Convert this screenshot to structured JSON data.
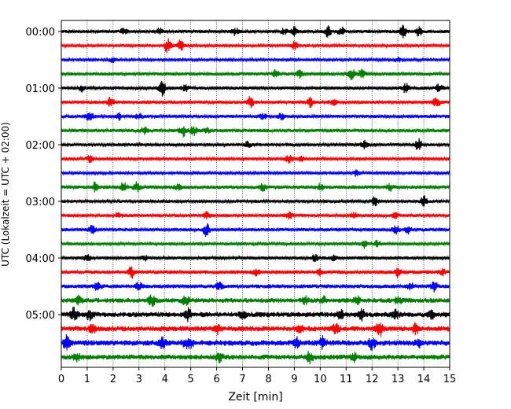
{
  "chart_data": {
    "type": "line",
    "title": "",
    "xlabel": "Zeit  [min]",
    "ylabel": "UTC (Lokalzeit = UTC + 02:00)",
    "xlim": [
      0,
      15
    ],
    "x_ticks": [
      "0",
      "1",
      "2",
      "3",
      "4",
      "5",
      "6",
      "7",
      "8",
      "9",
      "10",
      "11",
      "12",
      "13",
      "14",
      "15"
    ],
    "y_tick_labels": [
      "00:00",
      "01:00",
      "02:00",
      "03:00",
      "04:00",
      "05:00"
    ],
    "trace_interval_minutes": 15,
    "trace_count": 24,
    "start_time": "00:00",
    "grid": "vertical dotted lines at each minute",
    "colors": [
      "#000000",
      "#ff0000",
      "#0000ff",
      "#008000"
    ],
    "series": [
      {
        "start": "00:00",
        "color": "#000000",
        "activity": 0.5,
        "bursts": [
          [
            2.4,
            0.8
          ],
          [
            3.8,
            0.7
          ],
          [
            6.7,
            1.0
          ],
          [
            8.6,
            0.7
          ],
          [
            9.0,
            1.2
          ],
          [
            10.3,
            1.5
          ],
          [
            10.8,
            1.2
          ],
          [
            13.2,
            1.6
          ],
          [
            13.8,
            1.2
          ]
        ]
      },
      {
        "start": "00:15",
        "color": "#ff0000",
        "activity": 0.4,
        "bursts": [
          [
            4.1,
            2.0
          ],
          [
            4.6,
            1.5
          ],
          [
            9.0,
            1.0
          ]
        ]
      },
      {
        "start": "00:30",
        "color": "#0000ff",
        "activity": 0.3,
        "bursts": [
          [
            2.0,
            0.8
          ],
          [
            13.0,
            0.7
          ]
        ]
      },
      {
        "start": "00:45",
        "color": "#008000",
        "activity": 0.5,
        "bursts": [
          [
            8.3,
            1.2
          ],
          [
            9.2,
            1.0
          ],
          [
            11.2,
            1.5
          ],
          [
            11.6,
            1.2
          ]
        ]
      },
      {
        "start": "01:00",
        "color": "#000000",
        "activity": 0.5,
        "bursts": [
          [
            0.8,
            0.8
          ],
          [
            3.9,
            2.0
          ],
          [
            4.8,
            0.8
          ],
          [
            13.3,
            1.2
          ],
          [
            14.6,
            1.0
          ]
        ]
      },
      {
        "start": "01:15",
        "color": "#ff0000",
        "activity": 0.5,
        "bursts": [
          [
            1.9,
            1.2
          ],
          [
            7.3,
            1.5
          ],
          [
            9.6,
            1.3
          ],
          [
            10.5,
            0.8
          ],
          [
            14.5,
            1.4
          ]
        ]
      },
      {
        "start": "01:30",
        "color": "#0000ff",
        "activity": 0.5,
        "bursts": [
          [
            1.1,
            1.5
          ],
          [
            2.2,
            1.0
          ],
          [
            3.0,
            0.8
          ],
          [
            7.8,
            0.7
          ],
          [
            8.5,
            0.8
          ]
        ]
      },
      {
        "start": "01:45",
        "color": "#008000",
        "activity": 0.6,
        "bursts": [
          [
            3.2,
            1.0
          ],
          [
            4.7,
            1.5
          ],
          [
            5.1,
            1.2
          ],
          [
            5.6,
            0.8
          ]
        ]
      },
      {
        "start": "02:00",
        "color": "#000000",
        "activity": 0.4,
        "bursts": [
          [
            7.2,
            0.8
          ],
          [
            11.7,
            1.0
          ],
          [
            13.8,
            1.6
          ]
        ]
      },
      {
        "start": "02:15",
        "color": "#ff0000",
        "activity": 0.4,
        "bursts": [
          [
            1.1,
            1.0
          ],
          [
            8.8,
            1.2
          ],
          [
            9.3,
            0.6
          ]
        ]
      },
      {
        "start": "02:30",
        "color": "#0000ff",
        "activity": 0.3,
        "bursts": [
          [
            11.4,
            0.8
          ]
        ]
      },
      {
        "start": "02:45",
        "color": "#008000",
        "activity": 0.6,
        "bursts": [
          [
            1.3,
            1.2
          ],
          [
            2.4,
            1.2
          ],
          [
            2.9,
            1.5
          ],
          [
            4.5,
            0.8
          ],
          [
            7.8,
            1.0
          ],
          [
            10.0,
            0.8
          ],
          [
            12.7,
            0.8
          ]
        ]
      },
      {
        "start": "03:00",
        "color": "#000000",
        "activity": 0.4,
        "bursts": [
          [
            12.1,
            1.2
          ],
          [
            14.0,
            1.6
          ]
        ]
      },
      {
        "start": "03:15",
        "color": "#ff0000",
        "activity": 0.5,
        "bursts": [
          [
            2.2,
            0.8
          ],
          [
            5.6,
            1.0
          ],
          [
            8.8,
            1.0
          ],
          [
            11.3,
            0.8
          ],
          [
            12.9,
            0.7
          ]
        ]
      },
      {
        "start": "03:30",
        "color": "#0000ff",
        "activity": 0.5,
        "bursts": [
          [
            1.2,
            1.2
          ],
          [
            5.6,
            1.8
          ],
          [
            12.9,
            1.4
          ],
          [
            13.4,
            1.0
          ]
        ]
      },
      {
        "start": "03:45",
        "color": "#008000",
        "activity": 0.4,
        "bursts": [
          [
            11.7,
            1.0
          ],
          [
            12.2,
            0.8
          ]
        ]
      },
      {
        "start": "04:00",
        "color": "#000000",
        "activity": 0.5,
        "bursts": [
          [
            1.0,
            0.8
          ],
          [
            3.2,
            0.7
          ],
          [
            9.8,
            1.0
          ],
          [
            10.5,
            0.7
          ]
        ]
      },
      {
        "start": "04:15",
        "color": "#ff0000",
        "activity": 0.6,
        "bursts": [
          [
            2.7,
            1.5
          ],
          [
            7.5,
            1.0
          ],
          [
            10.0,
            0.8
          ],
          [
            13.0,
            1.2
          ],
          [
            14.7,
            1.0
          ]
        ]
      },
      {
        "start": "04:30",
        "color": "#0000ff",
        "activity": 0.7,
        "bursts": [
          [
            1.4,
            1.2
          ],
          [
            3.0,
            1.0
          ],
          [
            6.1,
            1.0
          ],
          [
            13.5,
            1.2
          ],
          [
            14.4,
            1.2
          ]
        ]
      },
      {
        "start": "04:45",
        "color": "#008000",
        "activity": 1.0,
        "bursts": [
          [
            0.7,
            1.2
          ],
          [
            3.5,
            1.5
          ],
          [
            4.8,
            1.2
          ],
          [
            9.4,
            1.0
          ],
          [
            10.1,
            1.0
          ],
          [
            11.4,
            1.0
          ],
          [
            13.0,
            1.0
          ]
        ]
      },
      {
        "start": "05:00",
        "color": "#000000",
        "activity": 1.2,
        "bursts": [
          [
            0.5,
            1.8
          ],
          [
            1.1,
            1.2
          ],
          [
            4.9,
            1.4
          ],
          [
            7.0,
            1.0
          ],
          [
            10.8,
            1.2
          ],
          [
            11.6,
            1.5
          ],
          [
            12.9,
            1.2
          ],
          [
            14.3,
            1.2
          ]
        ]
      },
      {
        "start": "05:15",
        "color": "#ff0000",
        "activity": 1.2,
        "bursts": [
          [
            1.2,
            1.0
          ],
          [
            6.0,
            1.2
          ],
          [
            9.2,
            1.0
          ],
          [
            10.6,
            1.2
          ],
          [
            12.3,
            1.8
          ],
          [
            13.7,
            1.4
          ]
        ]
      },
      {
        "start": "05:30",
        "color": "#0000ff",
        "activity": 1.3,
        "bursts": [
          [
            0.2,
            1.8
          ],
          [
            3.9,
            1.2
          ],
          [
            4.8,
            1.0
          ],
          [
            5.0,
            1.0
          ],
          [
            9.1,
            1.5
          ],
          [
            10.1,
            1.5
          ],
          [
            12.0,
            1.5
          ],
          [
            13.8,
            1.2
          ]
        ]
      },
      {
        "start": "05:45",
        "color": "#008000",
        "activity": 1.1,
        "bursts": [
          [
            0.6,
            1.0
          ],
          [
            6.1,
            1.2
          ],
          [
            9.6,
            1.5
          ],
          [
            11.3,
            1.0
          ]
        ]
      }
    ]
  }
}
